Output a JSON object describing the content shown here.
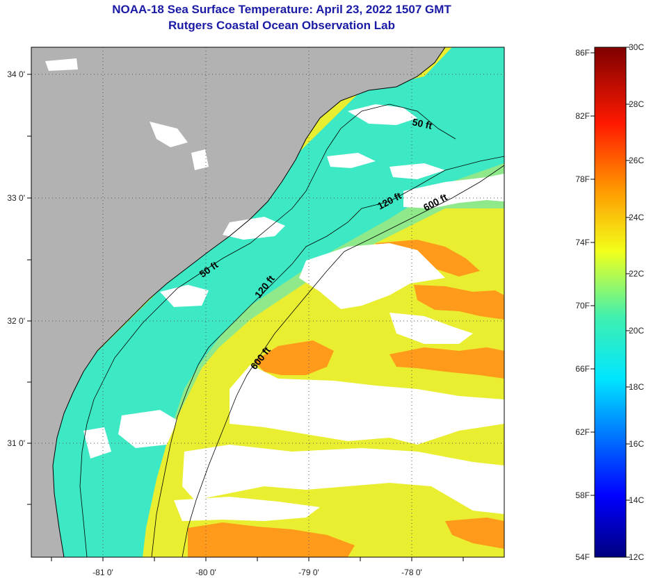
{
  "title": {
    "line1": "NOAA-18 Sea Surface Temperature:  April 23, 2022 1507 GMT",
    "line2": "Rutgers Coastal Ocean Observation Lab"
  },
  "map": {
    "longitude_ticks": [
      "-81 0'",
      "-80 0'",
      "-79 0'",
      "-78 0'"
    ],
    "latitude_ticks": [
      "34 0'",
      "33 0'",
      "32 0'",
      "31 0'"
    ],
    "contour_labels": [
      "50 ft",
      "120 ft",
      "600 ft",
      "50 ft",
      "120 ft",
      "600 ft"
    ],
    "colors": {
      "land": "#b2b2b2",
      "cloud": "#ffffff",
      "shelf_cool": "#33e8c8",
      "mid_shelf": "#78e79a",
      "warm_offshore": "#e8ee2e",
      "gulf_stream": "#ff9a1a"
    }
  },
  "colorbar": {
    "fahrenheit_labels": [
      "86F",
      "82F",
      "78F",
      "74F",
      "70F",
      "66F",
      "62F",
      "58F",
      "54F"
    ],
    "celsius_labels": [
      "30C",
      "28C",
      "26C",
      "24C",
      "22C",
      "20C",
      "18C",
      "16C",
      "14C",
      "12C"
    ],
    "range_celsius": [
      12,
      30
    ]
  }
}
